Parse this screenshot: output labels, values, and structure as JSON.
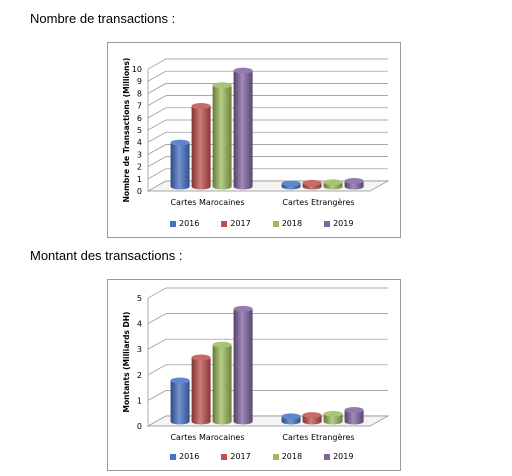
{
  "headings": {
    "count": "Nombre de transactions :",
    "amount": "Montant des transactions :"
  },
  "chart_data": [
    {
      "type": "bar",
      "ylabel": "Nombre de Transactions (Millions)",
      "categories": [
        "Cartes Marocaines",
        "Cartes Etrangères"
      ],
      "ylim": [
        0,
        10
      ],
      "yticks": [
        "0",
        "1",
        "2",
        "3",
        "4",
        "5",
        "6",
        "7",
        "8",
        "9",
        "10"
      ],
      "series": [
        {
          "name": "2016",
          "color": "#4472c4",
          "values": [
            3.6,
            0.25
          ]
        },
        {
          "name": "2017",
          "color": "#c0504d",
          "values": [
            6.6,
            0.3
          ]
        },
        {
          "name": "2018",
          "color": "#9bbb59",
          "values": [
            8.3,
            0.35
          ]
        },
        {
          "name": "2019",
          "color": "#8064a2",
          "values": [
            9.5,
            0.45
          ]
        }
      ]
    },
    {
      "type": "bar",
      "ylabel": "Montants (Milliards DH)",
      "categories": [
        "Cartes Marocaines",
        "Cartes Etrangères"
      ],
      "ylim": [
        0,
        5
      ],
      "yticks": [
        "0",
        "1",
        "2",
        "3",
        "4",
        "5"
      ],
      "series": [
        {
          "name": "2016",
          "color": "#4472c4",
          "values": [
            1.6,
            0.2
          ]
        },
        {
          "name": "2017",
          "color": "#c0504d",
          "values": [
            2.5,
            0.25
          ]
        },
        {
          "name": "2018",
          "color": "#9bbb59",
          "values": [
            3.0,
            0.3
          ]
        },
        {
          "name": "2019",
          "color": "#8064a2",
          "values": [
            4.4,
            0.45
          ]
        }
      ]
    }
  ]
}
